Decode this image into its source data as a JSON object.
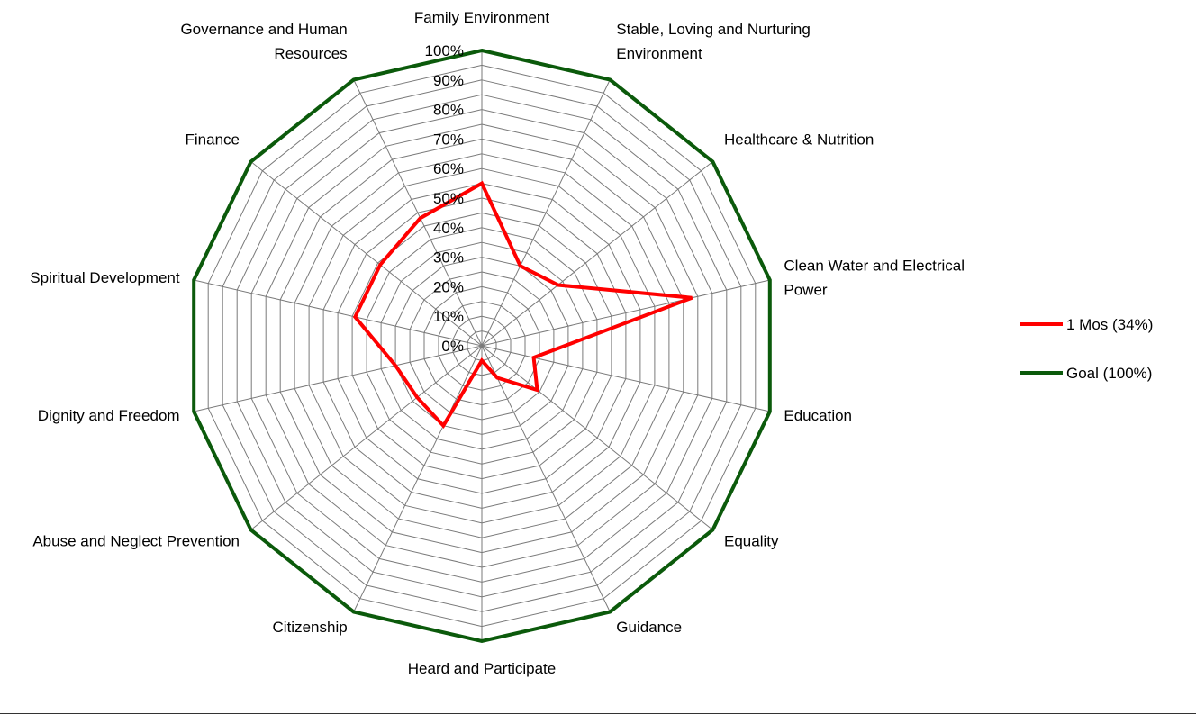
{
  "chart_data": {
    "type": "radar",
    "categories": [
      "Family Environment",
      [
        "Stable, Loving and Nurturing",
        "Environment"
      ],
      "Healthcare & Nutrition",
      [
        "Clean Water and Electrical",
        "Power"
      ],
      "Education",
      "Equality",
      "Guidance",
      "Heard and Participate",
      "Citizenship",
      "Abuse and Neglect  Prevention",
      "Dignity and Freedom",
      "Spiritual Development",
      "Finance",
      [
        "Governance and Human",
        "Resources"
      ]
    ],
    "radial_ticks": [
      "0%",
      "10%",
      "20%",
      "30%",
      "40%",
      "50%",
      "60%",
      "70%",
      "80%",
      "90%",
      "100%"
    ],
    "range": [
      0,
      100
    ],
    "gridlines": 20,
    "series": [
      {
        "name": "1 Mos (34%)",
        "color": "#ff0000",
        "values": [
          55,
          30,
          33,
          73,
          18,
          24,
          12,
          5,
          30,
          28,
          30,
          44,
          44,
          48
        ]
      },
      {
        "name": "Goal (100%)",
        "color": "#0b5a0b",
        "values": [
          100,
          100,
          100,
          100,
          100,
          100,
          100,
          100,
          100,
          100,
          100,
          100,
          100,
          100
        ]
      }
    ],
    "legend": "right"
  }
}
